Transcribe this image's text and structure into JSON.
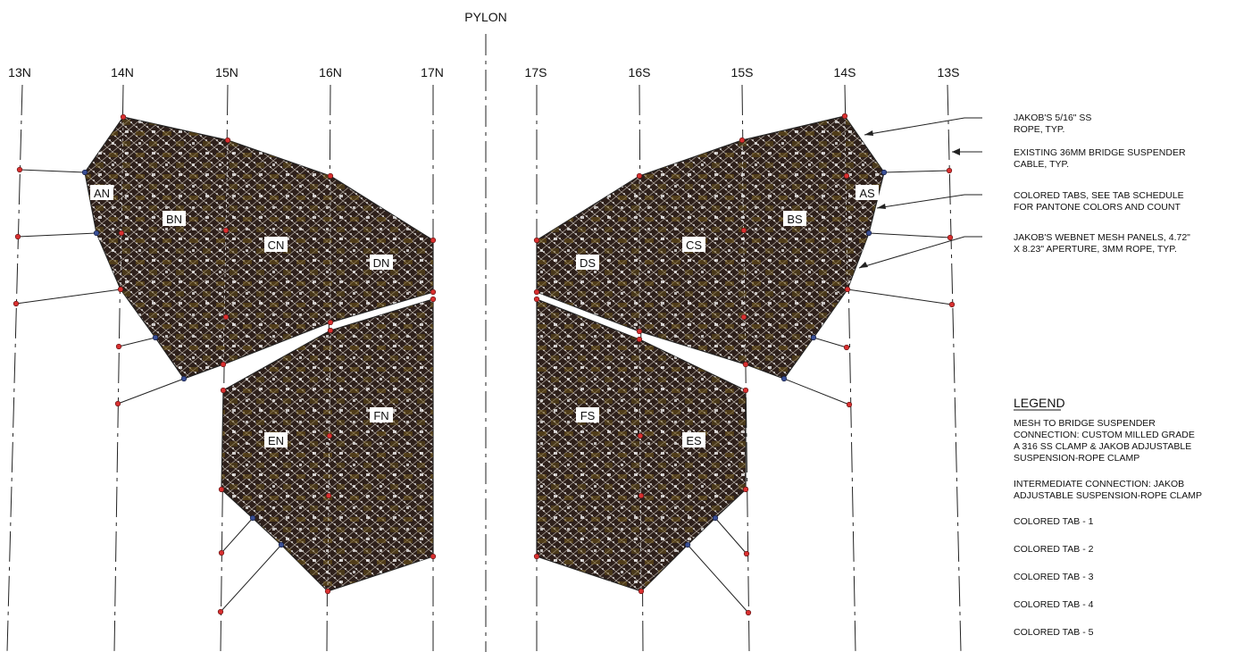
{
  "title": "PYLON",
  "gridlines_north": [
    "13N",
    "14N",
    "15N",
    "16N",
    "17N"
  ],
  "gridlines_south": [
    "17S",
    "16S",
    "15S",
    "14S",
    "13S"
  ],
  "panels": [
    "AN",
    "BN",
    "CN",
    "DN",
    "EN",
    "FN",
    "AS",
    "BS",
    "CS",
    "DS",
    "ES",
    "FS"
  ],
  "notes": [
    [
      "JAKOB'S 5/16\" SS",
      "ROPE, TYP."
    ],
    [
      "EXISTING 36MM BRIDGE SUSPENDER",
      "CABLE, TYP."
    ],
    [
      "COLORED TABS, SEE TAB SCHEDULE",
      "FOR PANTONE COLORS AND COUNT"
    ],
    [
      "JAKOB'S WEBNET MESH PANELS, 4.72\"",
      "X 8.23\" APERTURE, 3MM ROPE, TYP."
    ]
  ],
  "legend": {
    "title": "LEGEND",
    "mesh_connection": [
      "MESH TO BRIDGE SUSPENDER",
      "CONNECTION: CUSTOM MILLED GRADE",
      "A 316 SS CLAMP & JAKOB ADJUSTABLE",
      "SUSPENSION-ROPE CLAMP"
    ],
    "intermediate_connection": [
      "INTERMEDIATE CONNECTION: JAKOB",
      "ADJUSTABLE SUSPENSION-ROPE CLAMP"
    ],
    "tabs": [
      "COLORED TAB - 1",
      "COLORED TAB - 2",
      "COLORED TAB - 3",
      "COLORED TAB - 4",
      "COLORED TAB - 5"
    ]
  },
  "colors": {
    "mesh_dark": "#2e201b",
    "mesh_light": "#ffffff",
    "mesh_olive": "#6b5418",
    "mesh_connection": "#d93030",
    "intermediate_connection": "#3a4f95",
    "line": "#222222"
  }
}
